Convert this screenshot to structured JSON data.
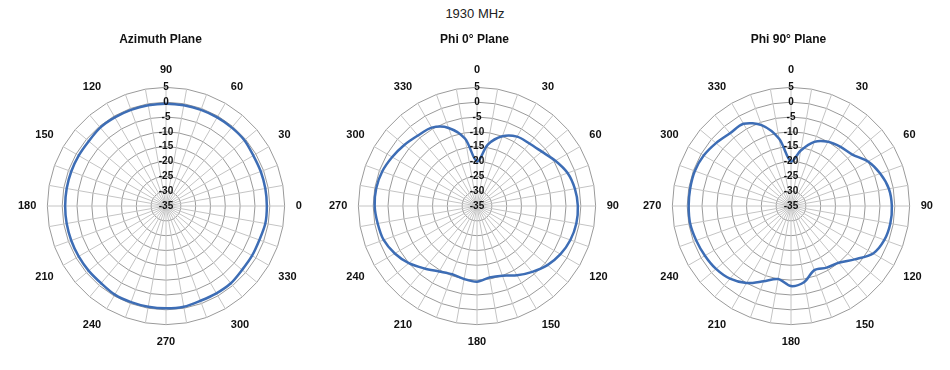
{
  "title": "1930 MHz",
  "chart_data": [
    {
      "type": "radar",
      "title": "Azimuth Plane",
      "categories": [
        "90",
        null,
        null,
        "60",
        null,
        null,
        "30",
        null,
        null,
        "0",
        null,
        null,
        "330",
        null,
        null,
        "300",
        null,
        null,
        "270",
        null,
        null,
        "240",
        null,
        null,
        "210",
        null,
        null,
        "180",
        null,
        null,
        "150",
        null,
        null,
        "120",
        null,
        null
      ],
      "values": [
        -0.5,
        -0.5,
        -0.5,
        -0.5,
        -0.5,
        -0.5,
        -1,
        -1,
        -1,
        -1,
        -1,
        -1.5,
        -1.5,
        -1.5,
        -1,
        -1,
        -1,
        -0.5,
        -0.5,
        -0.5,
        -0.5,
        -0.5,
        -1,
        -1,
        -1,
        -1,
        -1,
        -1,
        -1,
        -1,
        -1,
        -1,
        -0.5,
        -0.5,
        -0.5,
        -0.5
      ],
      "color": "#3d6db5",
      "ylim": [
        -35,
        5
      ],
      "yticks": [
        -35,
        -30,
        -25,
        -20,
        -15,
        -10,
        -5,
        0,
        5
      ],
      "grid": true
    },
    {
      "type": "radar",
      "title": "Phi 0° Plane",
      "categories": [
        "0",
        null,
        null,
        "30",
        null,
        null,
        "60",
        null,
        null,
        "90",
        null,
        null,
        "120",
        null,
        null,
        "150",
        null,
        null,
        "180",
        null,
        null,
        "210",
        null,
        null,
        "240",
        null,
        null,
        "270",
        null,
        null,
        "300",
        null,
        null,
        "330",
        null,
        null
      ],
      "values": [
        -20,
        -14,
        -10,
        -8,
        -7.5,
        -6.5,
        -4.5,
        -2.5,
        -1.5,
        -1,
        -1,
        -1.5,
        -2.5,
        -4,
        -6,
        -8,
        -10,
        -10.5,
        -9.5,
        -10,
        -10.5,
        -9.5,
        -7.5,
        -5,
        -3,
        -1.5,
        -1,
        -0.5,
        -0.5,
        -1,
        -2,
        -3,
        -4,
        -4.5,
        -7,
        -12
      ],
      "color": "#3d6db5",
      "ylim": [
        -35,
        5
      ],
      "yticks": [
        -35,
        -30,
        -25,
        -20,
        -15,
        -10,
        -5,
        0,
        5
      ],
      "grid": true
    },
    {
      "type": "radar",
      "title": "Phi 90° Plane",
      "categories": [
        "0",
        null,
        null,
        "30",
        null,
        null,
        "60",
        null,
        null,
        "90",
        null,
        null,
        "120",
        null,
        null,
        "150",
        null,
        null,
        "180",
        null,
        null,
        "210",
        null,
        null,
        "240",
        null,
        null,
        "270",
        null,
        null,
        "300",
        null,
        null,
        "330",
        null,
        null
      ],
      "values": [
        -20,
        -16,
        -12,
        -10,
        -9,
        -8,
        -5,
        -3,
        -1.5,
        -1,
        -1,
        -1.5,
        -3,
        -7,
        -10,
        -11,
        -12,
        -9,
        -8,
        -10,
        -8,
        -5,
        -3,
        -2,
        -1.5,
        -1,
        -0.5,
        -0.5,
        -0.5,
        -0.5,
        -1,
        -2,
        -3,
        -3,
        -6,
        -12
      ],
      "color": "#3d6db5",
      "ylim": [
        -35,
        5
      ],
      "yticks": [
        -35,
        -30,
        -25,
        -20,
        -15,
        -10,
        -5,
        0,
        5
      ],
      "grid": true
    }
  ]
}
